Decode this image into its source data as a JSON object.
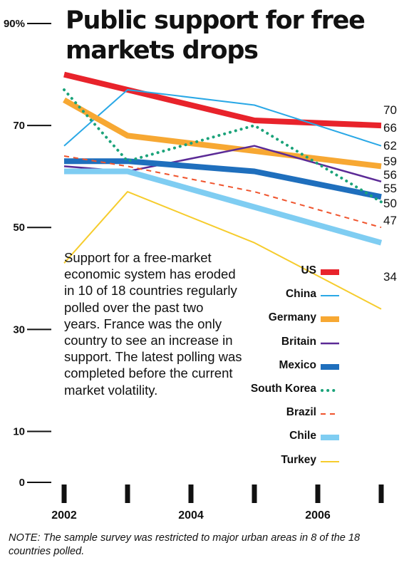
{
  "title": "Public support for free markets drops",
  "description": "Support for a free-market economic system has eroded in 10 of 18 countries regularly polled over the past two years. France was the only country to see an increase in support. The latest polling was completed before the current market volatility.",
  "note": "NOTE: The sample survey was restricted to major urban areas in 8 of the 18 countries polled.",
  "chart_data": {
    "type": "line",
    "title": "Public support for free markets drops",
    "ylim": [
      0,
      90
    ],
    "xlim": [
      2002,
      2007
    ],
    "y_ticks": [
      {
        "value": 0,
        "label": "0"
      },
      {
        "value": 10,
        "label": "10"
      },
      {
        "value": 30,
        "label": "30"
      },
      {
        "value": 50,
        "label": "50"
      },
      {
        "value": 70,
        "label": "70"
      },
      {
        "value": 90,
        "label": "90%"
      }
    ],
    "x_ticks": [
      2002,
      2003,
      2004,
      2005,
      2006,
      2007
    ],
    "x_tick_labels": [
      {
        "value": 2002,
        "label": "2002"
      },
      {
        "value": 2004,
        "label": "2004"
      },
      {
        "value": 2006,
        "label": "2006"
      }
    ],
    "grid": false,
    "legend_position": "bottom-right",
    "series": [
      {
        "name": "US",
        "color": "#e8232b",
        "style": "solid",
        "width": 8,
        "points": [
          [
            2002,
            80
          ],
          [
            2003,
            77
          ],
          [
            2005,
            71
          ],
          [
            2007,
            70
          ]
        ],
        "end_label": "70"
      },
      {
        "name": "China",
        "color": "#2aa8e6",
        "style": "solid",
        "width": 2,
        "points": [
          [
            2002,
            66
          ],
          [
            2003,
            77
          ],
          [
            2005,
            74
          ],
          [
            2007,
            66
          ]
        ],
        "end_label": "66"
      },
      {
        "name": "Germany",
        "color": "#f7a833",
        "style": "solid",
        "width": 8,
        "points": [
          [
            2002,
            75
          ],
          [
            2003,
            68
          ],
          [
            2005,
            65
          ],
          [
            2007,
            62
          ]
        ],
        "end_label": "62"
      },
      {
        "name": "Britain",
        "color": "#5b2a96",
        "style": "solid",
        "width": 2.5,
        "points": [
          [
            2002,
            62
          ],
          [
            2003,
            61
          ],
          [
            2005,
            66
          ],
          [
            2007,
            59
          ]
        ],
        "end_label": "59"
      },
      {
        "name": "Mexico",
        "color": "#1f6fbd",
        "style": "solid",
        "width": 8,
        "points": [
          [
            2002,
            63
          ],
          [
            2003,
            63
          ],
          [
            2005,
            61
          ],
          [
            2007,
            56
          ]
        ],
        "end_label": "56"
      },
      {
        "name": "South Korea",
        "color": "#1ba37a",
        "style": "dotted",
        "width": 4,
        "points": [
          [
            2002,
            77
          ],
          [
            2003,
            63
          ],
          [
            2005,
            70
          ],
          [
            2007,
            55
          ]
        ],
        "end_label": "55"
      },
      {
        "name": "Brazil",
        "color": "#f0542d",
        "style": "dashed",
        "width": 2,
        "points": [
          [
            2002,
            64
          ],
          [
            2003,
            62
          ],
          [
            2005,
            57
          ],
          [
            2007,
            50
          ]
        ],
        "end_label": "50"
      },
      {
        "name": "Chile",
        "color": "#7fcdf2",
        "style": "solid",
        "width": 8,
        "points": [
          [
            2002,
            61
          ],
          [
            2003,
            61
          ],
          [
            2005,
            54
          ],
          [
            2007,
            47
          ]
        ],
        "end_label": "47"
      },
      {
        "name": "Turkey",
        "color": "#f6cc2d",
        "style": "solid",
        "width": 2,
        "points": [
          [
            2002,
            43
          ],
          [
            2003,
            57
          ],
          [
            2005,
            47
          ],
          [
            2007,
            34
          ]
        ],
        "end_label": "34"
      }
    ]
  }
}
